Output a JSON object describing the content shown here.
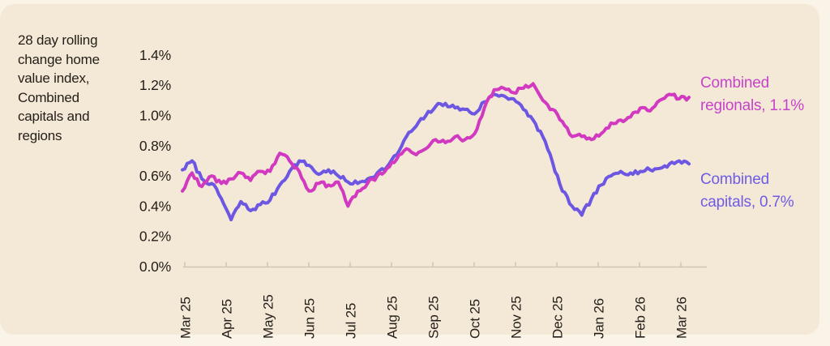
{
  "description": "28 day rolling\nchange home\nvalue index,\nCombined\ncapitals and\nregions",
  "series_labels": {
    "regionals": "Combined\nregionals, 1.1%",
    "capitals": "Combined\ncapitals, 0.7%"
  },
  "colors": {
    "background": "#f4e9d7",
    "frame": "#faf3e7",
    "text": "#231e18",
    "axis": "#cfc5b2",
    "regionals_line": "#d139c0",
    "capitals_line": "#6c56e2",
    "regionals_label": "#c743c9",
    "capitals_label": "#6e5be6"
  },
  "chart_data": {
    "type": "line",
    "title": "28 day rolling change home value index, Combined capitals and regions",
    "x_tick_labels": [
      "Mar 25",
      "Apr 25",
      "May 25",
      "Jun 25",
      "Jul 25",
      "Aug 25",
      "Sep 25",
      "Oct 25",
      "Nov 25",
      "Dec 25",
      "Jan 26",
      "Feb 26",
      "Mar 26"
    ],
    "y_tick_labels": [
      "0.0%",
      "0.2%",
      "0.4%",
      "0.6%",
      "0.8%",
      "1.0%",
      "1.2%",
      "1.4%"
    ],
    "y_tick_values": [
      0.0,
      0.2,
      0.4,
      0.6,
      0.8,
      1.0,
      1.2,
      1.4
    ],
    "ylim": [
      0.0,
      1.4
    ],
    "y_unit": "%",
    "grid": false,
    "legend_position": "right-end-labels",
    "sampling": "approx-weekly, Mar 2025 to mid Mar 2026",
    "series": [
      {
        "name": "Combined capitals",
        "end_label": "Combined capitals, 0.7%",
        "latest_value": 0.7,
        "color": "#6c56e2",
        "values": [
          0.64,
          0.7,
          0.58,
          0.55,
          0.45,
          0.31,
          0.43,
          0.37,
          0.41,
          0.44,
          0.54,
          0.63,
          0.7,
          0.67,
          0.61,
          0.64,
          0.6,
          0.56,
          0.55,
          0.58,
          0.62,
          0.66,
          0.74,
          0.86,
          0.93,
          1.0,
          1.06,
          1.08,
          1.05,
          1.04,
          1.01,
          1.09,
          1.14,
          1.13,
          1.11,
          1.04,
          0.97,
          0.86,
          0.69,
          0.5,
          0.4,
          0.34,
          0.45,
          0.54,
          0.6,
          0.63,
          0.62,
          0.63,
          0.64,
          0.65,
          0.68,
          0.7,
          0.68
        ]
      },
      {
        "name": "Combined regionals",
        "end_label": "Combined regionals, 1.1%",
        "latest_value": 1.1,
        "color": "#d139c0",
        "values": [
          0.5,
          0.62,
          0.53,
          0.6,
          0.55,
          0.58,
          0.62,
          0.57,
          0.63,
          0.63,
          0.75,
          0.7,
          0.63,
          0.5,
          0.55,
          0.54,
          0.56,
          0.4,
          0.5,
          0.55,
          0.6,
          0.65,
          0.71,
          0.78,
          0.74,
          0.78,
          0.84,
          0.82,
          0.86,
          0.84,
          0.88,
          1.05,
          1.17,
          1.18,
          1.15,
          1.18,
          1.21,
          1.1,
          1.04,
          0.96,
          0.86,
          0.86,
          0.84,
          0.88,
          0.95,
          0.97,
          0.99,
          1.05,
          1.03,
          1.1,
          1.14,
          1.11,
          1.12
        ]
      }
    ]
  }
}
